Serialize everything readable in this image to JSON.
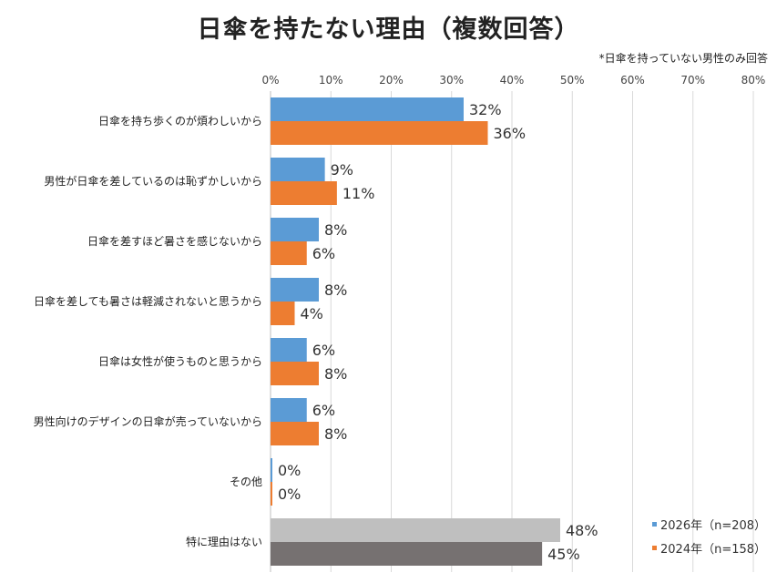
{
  "chart_data": {
    "type": "bar",
    "orientation": "horizontal",
    "title": "日傘を持たない理由（複数回答）",
    "note": "*日傘を持っていない男性のみ回答",
    "x_ticks": [
      "0%",
      "10%",
      "20%",
      "30%",
      "40%",
      "50%",
      "60%",
      "70%",
      "80%"
    ],
    "xlim": [
      0,
      80
    ],
    "grid": true,
    "legend_position": "bottom-right",
    "categories": [
      "日傘を持ち歩くのが煩わしいから",
      "男性が日傘を差しているのは恥ずかしいから",
      "日傘を差すほど暑さを感じないから",
      "日傘を差しても暑さは軽減されないと思うから",
      "日傘は女性が使うものと思うから",
      "男性向けのデザインの日傘が売っていないから",
      "その他",
      "特に理由はない"
    ],
    "series": [
      {
        "name": "2026年（n=208）",
        "color": "#5b9bd5",
        "highlight_color": "#bfbfbf",
        "values": [
          32,
          9,
          8,
          8,
          6,
          6,
          0.3,
          48
        ],
        "labels": [
          "32%",
          "9%",
          "8%",
          "8%",
          "6%",
          "6%",
          "0%",
          "48%"
        ]
      },
      {
        "name": "2024年（n=158）",
        "color": "#ed7d31",
        "highlight_color": "#767171",
        "values": [
          36,
          11,
          6,
          4,
          8,
          8,
          0.3,
          45
        ],
        "labels": [
          "36%",
          "11%",
          "6%",
          "4%",
          "8%",
          "8%",
          "0%",
          "45%"
        ]
      }
    ],
    "highlight_category_index": 7
  }
}
